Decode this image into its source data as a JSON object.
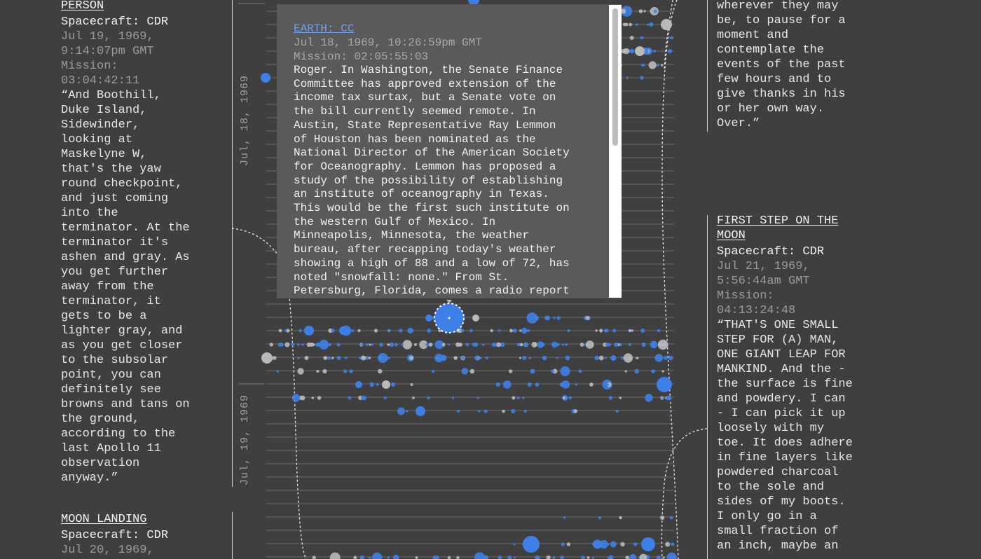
{
  "cards": {
    "left_top": {
      "title": "PERSON",
      "craft": "Spacecraft: CDR",
      "time_line1": "Jul 19, 1969,",
      "time_line2": "9:14:07pm GMT",
      "mission_label": "Mission:",
      "mission_value": "03:04:42:11",
      "quote": "“And Boothill,\nDuke Island,\nSidewinder,\nlooking at\nMaskelyne W,\nthat's the yaw\nround checkpoint,\nand just coming\ninto the\nterminator. At the\nterminator it's\nashen and gray. As\nyou get further\naway from the\nterminator, it\ngets to be a\nlighter gray, and\nas you get closer\nto the subsolar\npoint, you can\ndefinitely see\nbrowns and tans on\nthe ground,\naccording to the\nlast Apollo 11\nobservation\nanyway.”"
    },
    "left_bottom": {
      "title": "MOON LANDING",
      "craft": "Spacecraft: CDR",
      "time_line1": "Jul 20, 1969,"
    },
    "right_top": {
      "quote": "wherever they may\nbe, to pause for a\nmoment and\ncontemplate the\nevents of the past\nfew hours and to\ngive thanks in his\nor her own way.\nOver.”"
    },
    "right_bottom": {
      "title_line1": "FIRST STEP ON THE",
      "title_line2": "MOON",
      "craft": "Spacecraft: CDR",
      "time_line1": "Jul 21, 1969,",
      "time_line2": "5:56:44am GMT",
      "mission_label": "Mission:",
      "mission_value": "04:13:24:48",
      "quote": "“THAT'S ONE SMALL\nSTEP FOR (A) MAN,\nONE GIANT LEAP FOR\nMANKIND. And the -\nthe surface is fine\nand powdery. I can\n- I can pick it up\nloosely with my\ntoe. It does adhere\nin fine layers like\npowdered charcoal\nto the sole and\nsides of my boots.\nI only go in a\nsmall fraction of\nan inch, maybe an"
    }
  },
  "timeline": {
    "date_labels": [
      "Jul, 18, 1969",
      "Jul, 19, 1969"
    ],
    "colors": {
      "blue": "#3d7fe6",
      "gray": "#b9b9b9",
      "line": "#6a6a6a"
    }
  },
  "popup": {
    "title": "EARTH: CC",
    "time": "Jul 18, 1969, 10:26:59pm GMT",
    "mission": "Mission: 02:05:55:03",
    "body_lines": [
      "Roger. In Washington, the Senate Finance",
      "Committee has approved extension of the",
      "income tax surtax, but a Senate vote on",
      "the bill currently seemed remote. In",
      "Austin, State Representative Ray Lemmon",
      "of Houston has been nominated as the",
      "National Director of the American Society",
      "for Oceanography. Lemmon has proposed a",
      "study of the possibility of establishing",
      "an institute of oceanography in Texas.",
      "This would be the first such institute on",
      "the western Gulf of Mexico. In",
      "Minneapolis, Minnesota, the weather",
      "bureau, after recapping today's weather",
      "showing a high of 88 and a low of 72, has",
      "noted \"snowfall: none.\" From St.",
      "Petersburg, Florida, comes a radio report"
    ]
  }
}
